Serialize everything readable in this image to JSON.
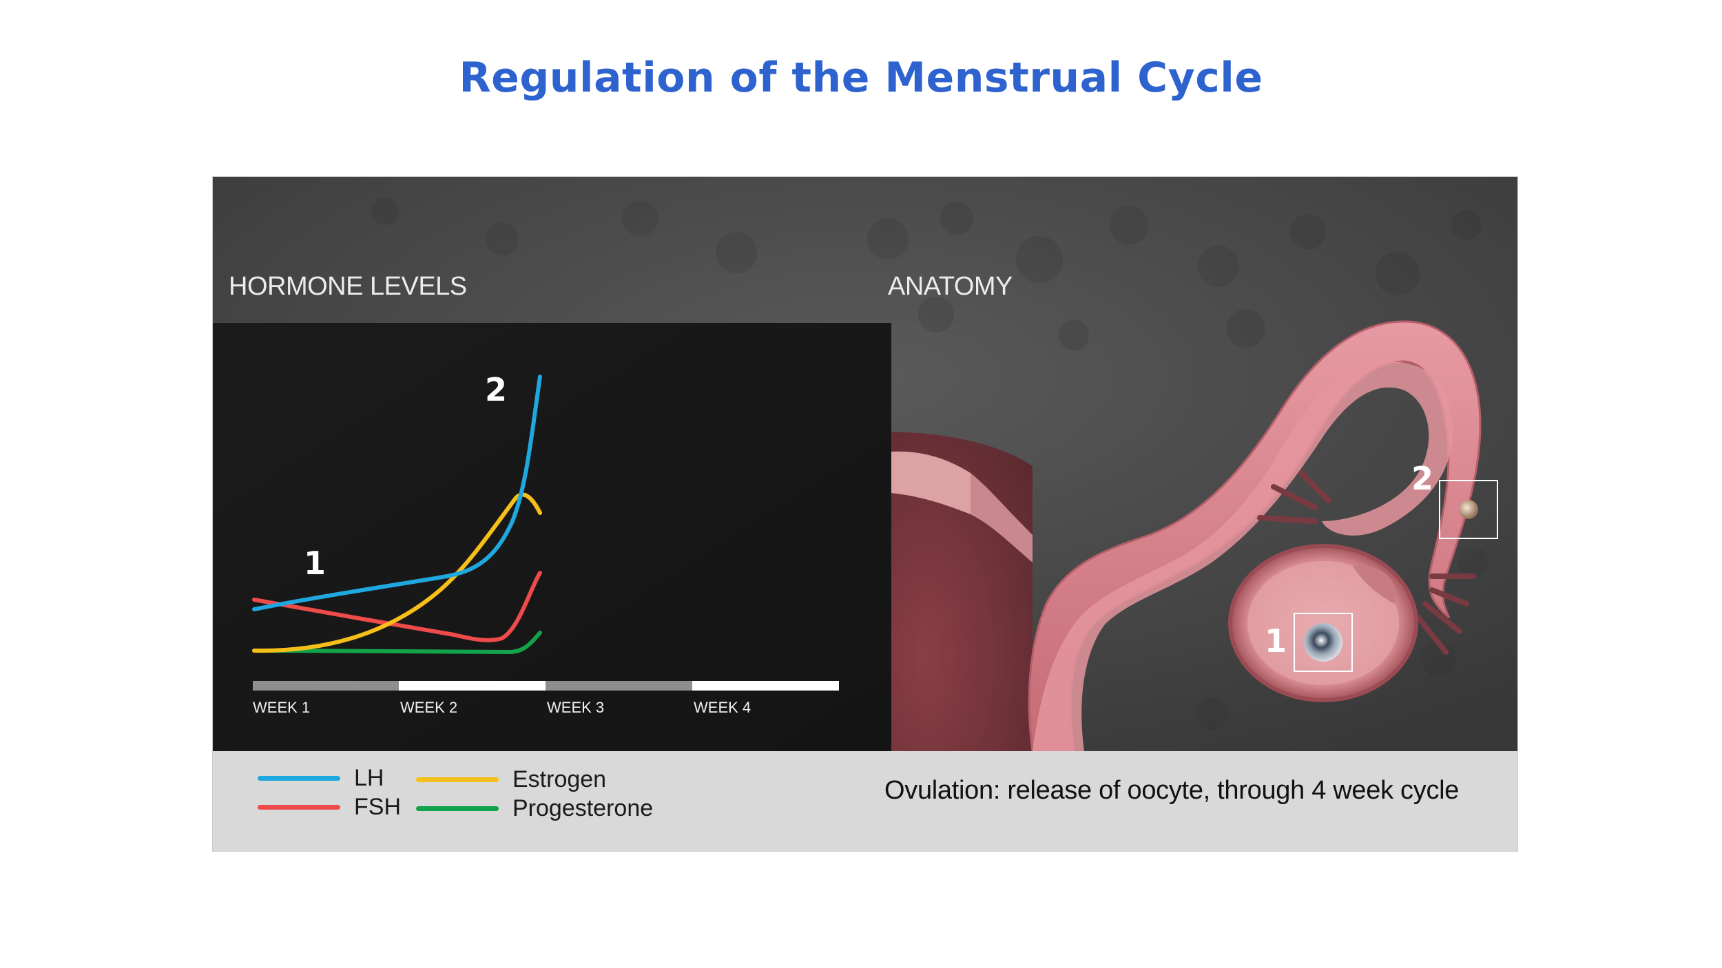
{
  "title": "Regulation of the Menstrual Cycle",
  "hormone_panel": {
    "label": "HORMONE LEVELS",
    "weeks": [
      "WEEK 1",
      "WEEK 2",
      "WEEK 3",
      "WEEK 4"
    ],
    "markers": [
      "1",
      "2"
    ]
  },
  "anatomy_panel": {
    "label": "ANATOMY",
    "markers": [
      "1",
      "2"
    ]
  },
  "legend": [
    {
      "label": "LH",
      "color": "#1fa7e0"
    },
    {
      "label": "FSH",
      "color": "#ef4b4b"
    },
    {
      "label": "Estrogen",
      "color": "#f7bf1a"
    },
    {
      "label": "Progesterone",
      "color": "#13a34a"
    }
  ],
  "caption": "Ovulation: release of oocyte, through 4 week cycle"
}
